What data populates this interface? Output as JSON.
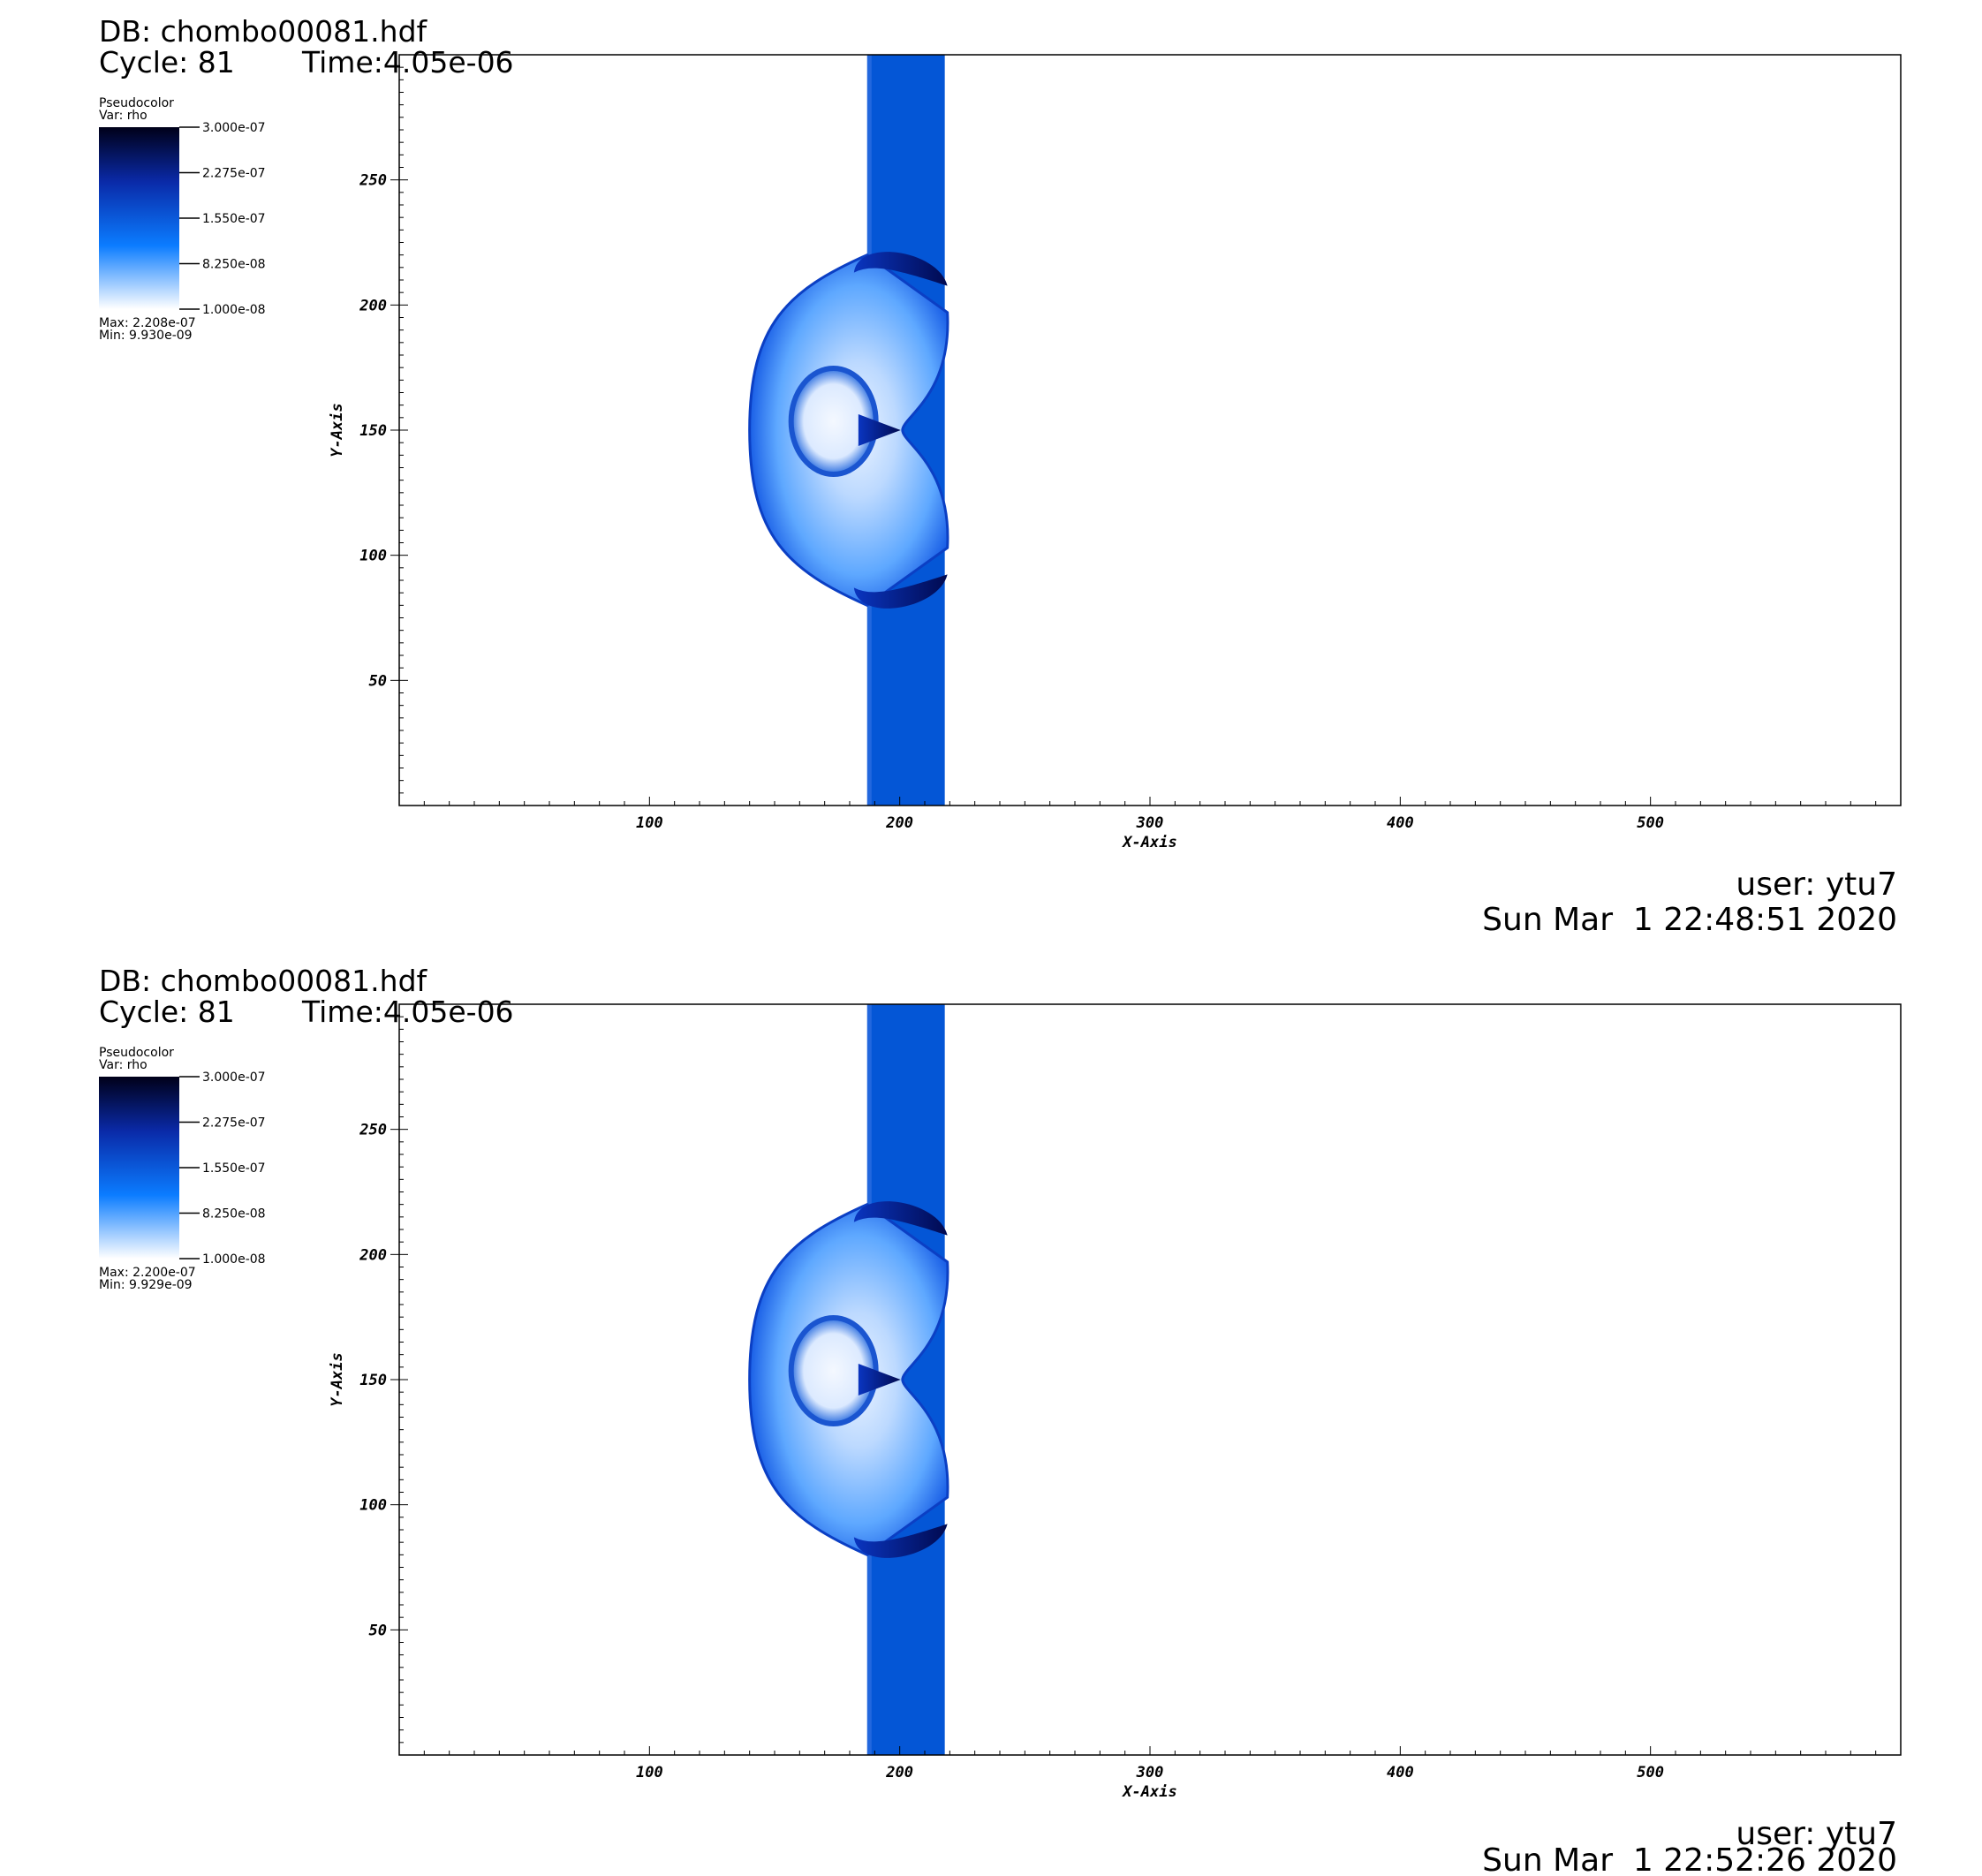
{
  "panels": [
    {
      "db": "DB: chombo00081.hdf",
      "cycle": "Cycle: 81",
      "time": "Time:4.05e-06",
      "legend": {
        "title": "Pseudocolor",
        "var": "Var: rho",
        "ticks": [
          "3.000e-07",
          "2.275e-07",
          "1.550e-07",
          "8.250e-08",
          "1.000e-08"
        ],
        "max": "Max: 2.208e-07",
        "min": "Min: 9.930e-09"
      },
      "user": "user: ytu7",
      "date": "Sun Mar  1 22:48:51 2020"
    },
    {
      "db": "DB: chombo00081.hdf",
      "cycle": "Cycle: 81",
      "time": "Time:4.05e-06",
      "legend": {
        "title": "Pseudocolor",
        "var": "Var: rho",
        "ticks": [
          "3.000e-07",
          "2.275e-07",
          "1.550e-07",
          "8.250e-08",
          "1.000e-08"
        ],
        "max": "Max: 2.200e-07",
        "min": "Min: 9.929e-09"
      },
      "user": "user: ytu7",
      "date": "Sun Mar  1 22:52:26 2020"
    }
  ],
  "chart_data": {
    "type": "heatmap",
    "variable": "rho",
    "xlabel": "X-Axis",
    "ylabel": "Y-Axis",
    "xlim": [
      0,
      600
    ],
    "ylim": [
      0,
      300
    ],
    "xticks": [
      100,
      200,
      300,
      400,
      500
    ],
    "yticks": [
      50,
      100,
      150,
      200,
      250
    ],
    "colorbar": {
      "min": 1e-08,
      "max": 3e-07,
      "colors": [
        "#ffffff",
        "#0b7cff",
        "#0a2aa8",
        "#000019"
      ]
    },
    "features": {
      "band_x": [
        187,
        218
      ],
      "band_color": "#0456d6",
      "shock_front_min_x": 140,
      "shock_center_y": 150,
      "shock_y_range": [
        80,
        220
      ]
    }
  }
}
